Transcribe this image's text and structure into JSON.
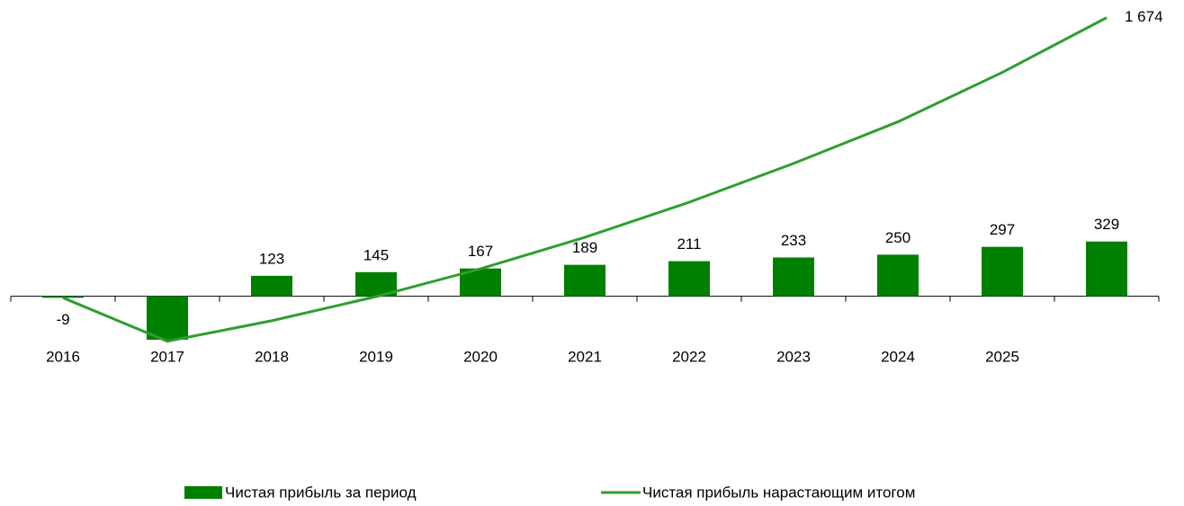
{
  "chart_data": {
    "type": "bar_line",
    "categories": [
      "2016",
      "2017",
      "2018",
      "2019",
      "2020",
      "2021",
      "2022",
      "2023",
      "2024",
      "2025",
      null
    ],
    "series": [
      {
        "name": "Чистая прибыль за период",
        "type": "bar",
        "color": "#008000",
        "values": [
          -9,
          -261,
          123,
          145,
          167,
          189,
          211,
          233,
          250,
          297,
          329
        ],
        "value_labels": [
          "-9",
          null,
          "123",
          "145",
          "167",
          "189",
          "211",
          "233",
          "250",
          "297",
          "329"
        ]
      },
      {
        "name": "Чистая прибыль нарастающим итогом",
        "type": "line",
        "color": "#2e9e2e",
        "values": [
          -9,
          -270,
          -147,
          -2,
          165,
          354,
          565,
          798,
          1048,
          1345,
          1674
        ],
        "value_labels": [
          null,
          null,
          null,
          null,
          null,
          null,
          null,
          null,
          null,
          null,
          "1 674"
        ]
      }
    ],
    "ylim": [
      -1260,
      1780
    ]
  }
}
